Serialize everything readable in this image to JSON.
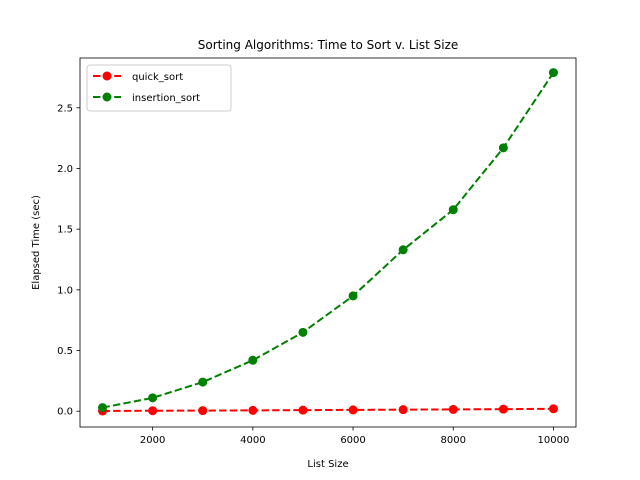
{
  "chart_data": {
    "type": "line",
    "title": "Sorting Algorithms: Time to Sort v. List Size",
    "xlabel": "List Size",
    "ylabel": "Elapsed Time (sec)",
    "xlim": [
      550,
      10450
    ],
    "ylim": [
      -0.13,
      2.91
    ],
    "xticks": [
      2000,
      4000,
      6000,
      8000,
      10000
    ],
    "yticks": [
      0.0,
      0.5,
      1.0,
      1.5,
      2.0,
      2.5
    ],
    "xtick_labels": [
      "2000",
      "4000",
      "6000",
      "8000",
      "10000"
    ],
    "ytick_labels": [
      "0.0",
      "0.5",
      "1.0",
      "1.5",
      "2.0",
      "2.5"
    ],
    "grid": false,
    "legend_position": "top-left",
    "x": [
      1000,
      2000,
      3000,
      4000,
      5000,
      6000,
      7000,
      8000,
      9000,
      10000
    ],
    "series": [
      {
        "name": "quick_sort",
        "color": "#ff0000",
        "line_style": "dashed",
        "marker": "circle",
        "values": [
          0.002,
          0.004,
          0.005,
          0.007,
          0.009,
          0.011,
          0.013,
          0.015,
          0.017,
          0.02
        ]
      },
      {
        "name": "insertion_sort",
        "color": "#008000",
        "line_style": "dashed",
        "marker": "circle",
        "values": [
          0.03,
          0.11,
          0.24,
          0.42,
          0.65,
          0.95,
          1.33,
          1.66,
          2.17,
          2.79
        ]
      }
    ]
  }
}
